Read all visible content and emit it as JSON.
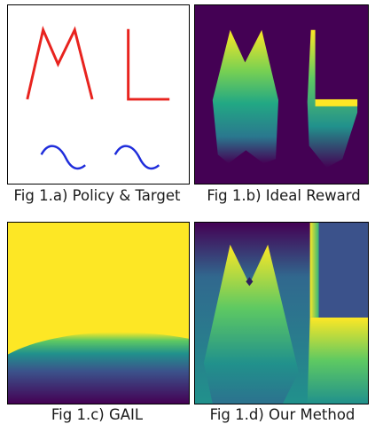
{
  "captions": {
    "a": "Fig 1.a) Policy & Target",
    "b": "Fig 1.b) Ideal Reward",
    "c": "Fig 1.c) GAIL",
    "d": "Fig 1.d) Our Method"
  },
  "colors": {
    "policy": "#e8231e",
    "target": "#1f2ddb",
    "viridis_low": "#440154",
    "viridis_mid": "#21918c",
    "viridis_high": "#fde725"
  }
}
